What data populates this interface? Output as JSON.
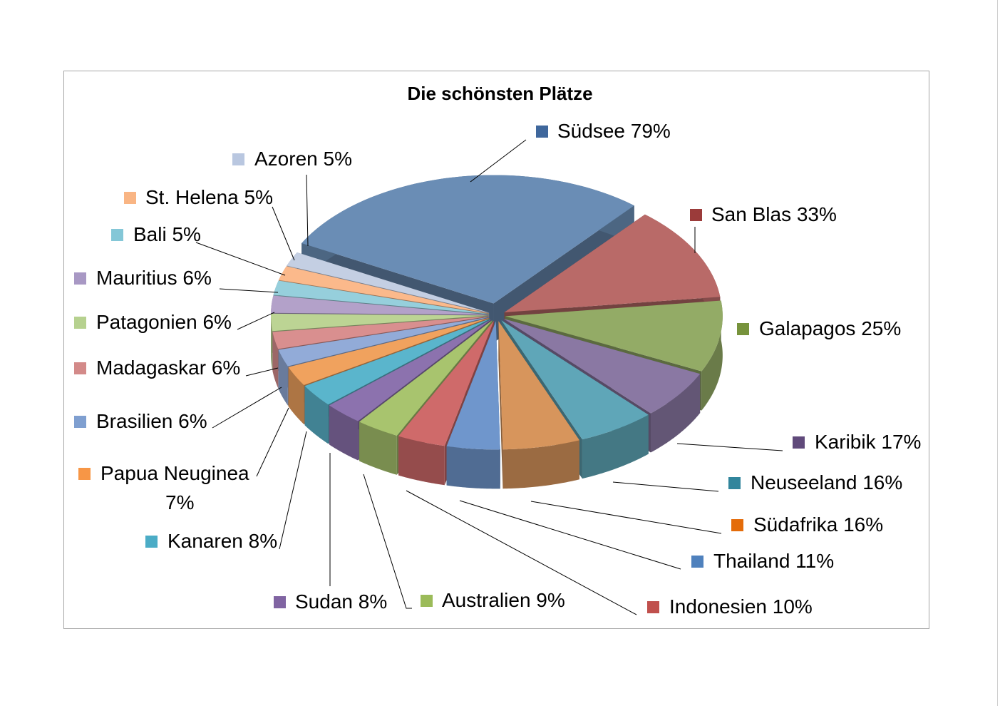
{
  "chart_data": {
    "type": "pie",
    "title": "Die schönsten Plätze",
    "unit": "%",
    "categories": [
      "Südsee",
      "San Blas",
      "Galapagos",
      "Karibik",
      "Neuseeland",
      "Südafrika",
      "Thailand",
      "Indonesien",
      "Australien",
      "Sudan",
      "Kanaren",
      "Papua Neuginea",
      "Brasilien",
      "Madagaskar",
      "Patagonien",
      "Mauritius",
      "Bali",
      "St. Helena",
      "Azoren"
    ],
    "values": [
      79,
      33,
      25,
      17,
      16,
      16,
      11,
      10,
      9,
      8,
      8,
      7,
      6,
      6,
      6,
      6,
      5,
      5,
      5
    ],
    "labels": [
      "Südsee 79%",
      "San Blas 33%",
      "Galapagos 25%",
      "Karibik 17%",
      "Neuseeland 16%",
      "Südafrika 16%",
      "Thailand 11%",
      "Indonesien 10%",
      "Australien 9%",
      "Sudan 8%",
      "Kanaren 8%",
      "Papua Neuginea",
      "Brasilien 6%",
      "Madagaskar 6%",
      "Patagonien 6%",
      "Mauritius 6%",
      "Bali 5%",
      "St. Helena 5%",
      "Azoren 5%"
    ],
    "label_extra": {
      "papua_percent": "7%"
    },
    "colors": [
      "#6a8db5",
      "#b96a68",
      "#93ab66",
      "#8a78a3",
      "#5fa6b8",
      "#d7955c",
      "#6f96cc",
      "#cf6a6a",
      "#a8c46e",
      "#8c72ae",
      "#5ab5cc",
      "#f0a25e",
      "#92abd8",
      "#d98f8f",
      "#bcd494",
      "#b3a1c9",
      "#96cfdc",
      "#fbb98b",
      "#c4cfe3"
    ],
    "legend_colors": [
      "#3f679c",
      "#9b3b3a",
      "#77933c",
      "#604a7b",
      "#31859c",
      "#e46c0a",
      "#4f81bd",
      "#c0504d",
      "#9bbb59",
      "#8064a2",
      "#4bacc6",
      "#f79646",
      "#7f9fd0",
      "#d38a89",
      "#b6d18f",
      "#a898c4",
      "#84c7d7",
      "#f9b584",
      "#b9c7e0"
    ],
    "style": "3d-exploded",
    "legend": "data-labels-around"
  }
}
